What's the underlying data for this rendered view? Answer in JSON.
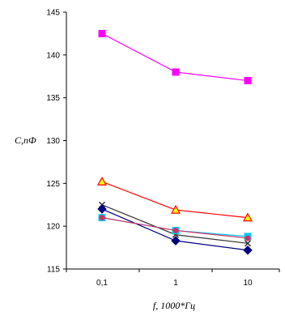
{
  "chart_data": {
    "type": "line",
    "xlabel": "f, 1000*Гц",
    "ylabel": "C,пФ",
    "categories": [
      "0,1",
      "1",
      "10"
    ],
    "ylim": [
      115,
      145
    ],
    "yticks": [
      115,
      120,
      125,
      130,
      135,
      140,
      145
    ],
    "grid": false,
    "series": [
      {
        "color": "#ff00ff",
        "marker": "square",
        "values": [
          142.5,
          138.0,
          137.0
        ]
      },
      {
        "color": "#ff0000",
        "marker": "triangle",
        "values": [
          125.2,
          121.9,
          121.0
        ]
      },
      {
        "color": "#333333",
        "marker": "x",
        "values": [
          122.5,
          119.0,
          118.0
        ]
      },
      {
        "color": "#00ccff",
        "marker": "square",
        "values": [
          121.0,
          119.5,
          118.8
        ]
      },
      {
        "color": "#000080",
        "marker": "diamond",
        "values": [
          122.0,
          118.3,
          117.2
        ]
      },
      {
        "color": "#cc3366",
        "marker": "dot",
        "values": [
          121.0,
          119.5,
          118.6
        ]
      }
    ]
  }
}
